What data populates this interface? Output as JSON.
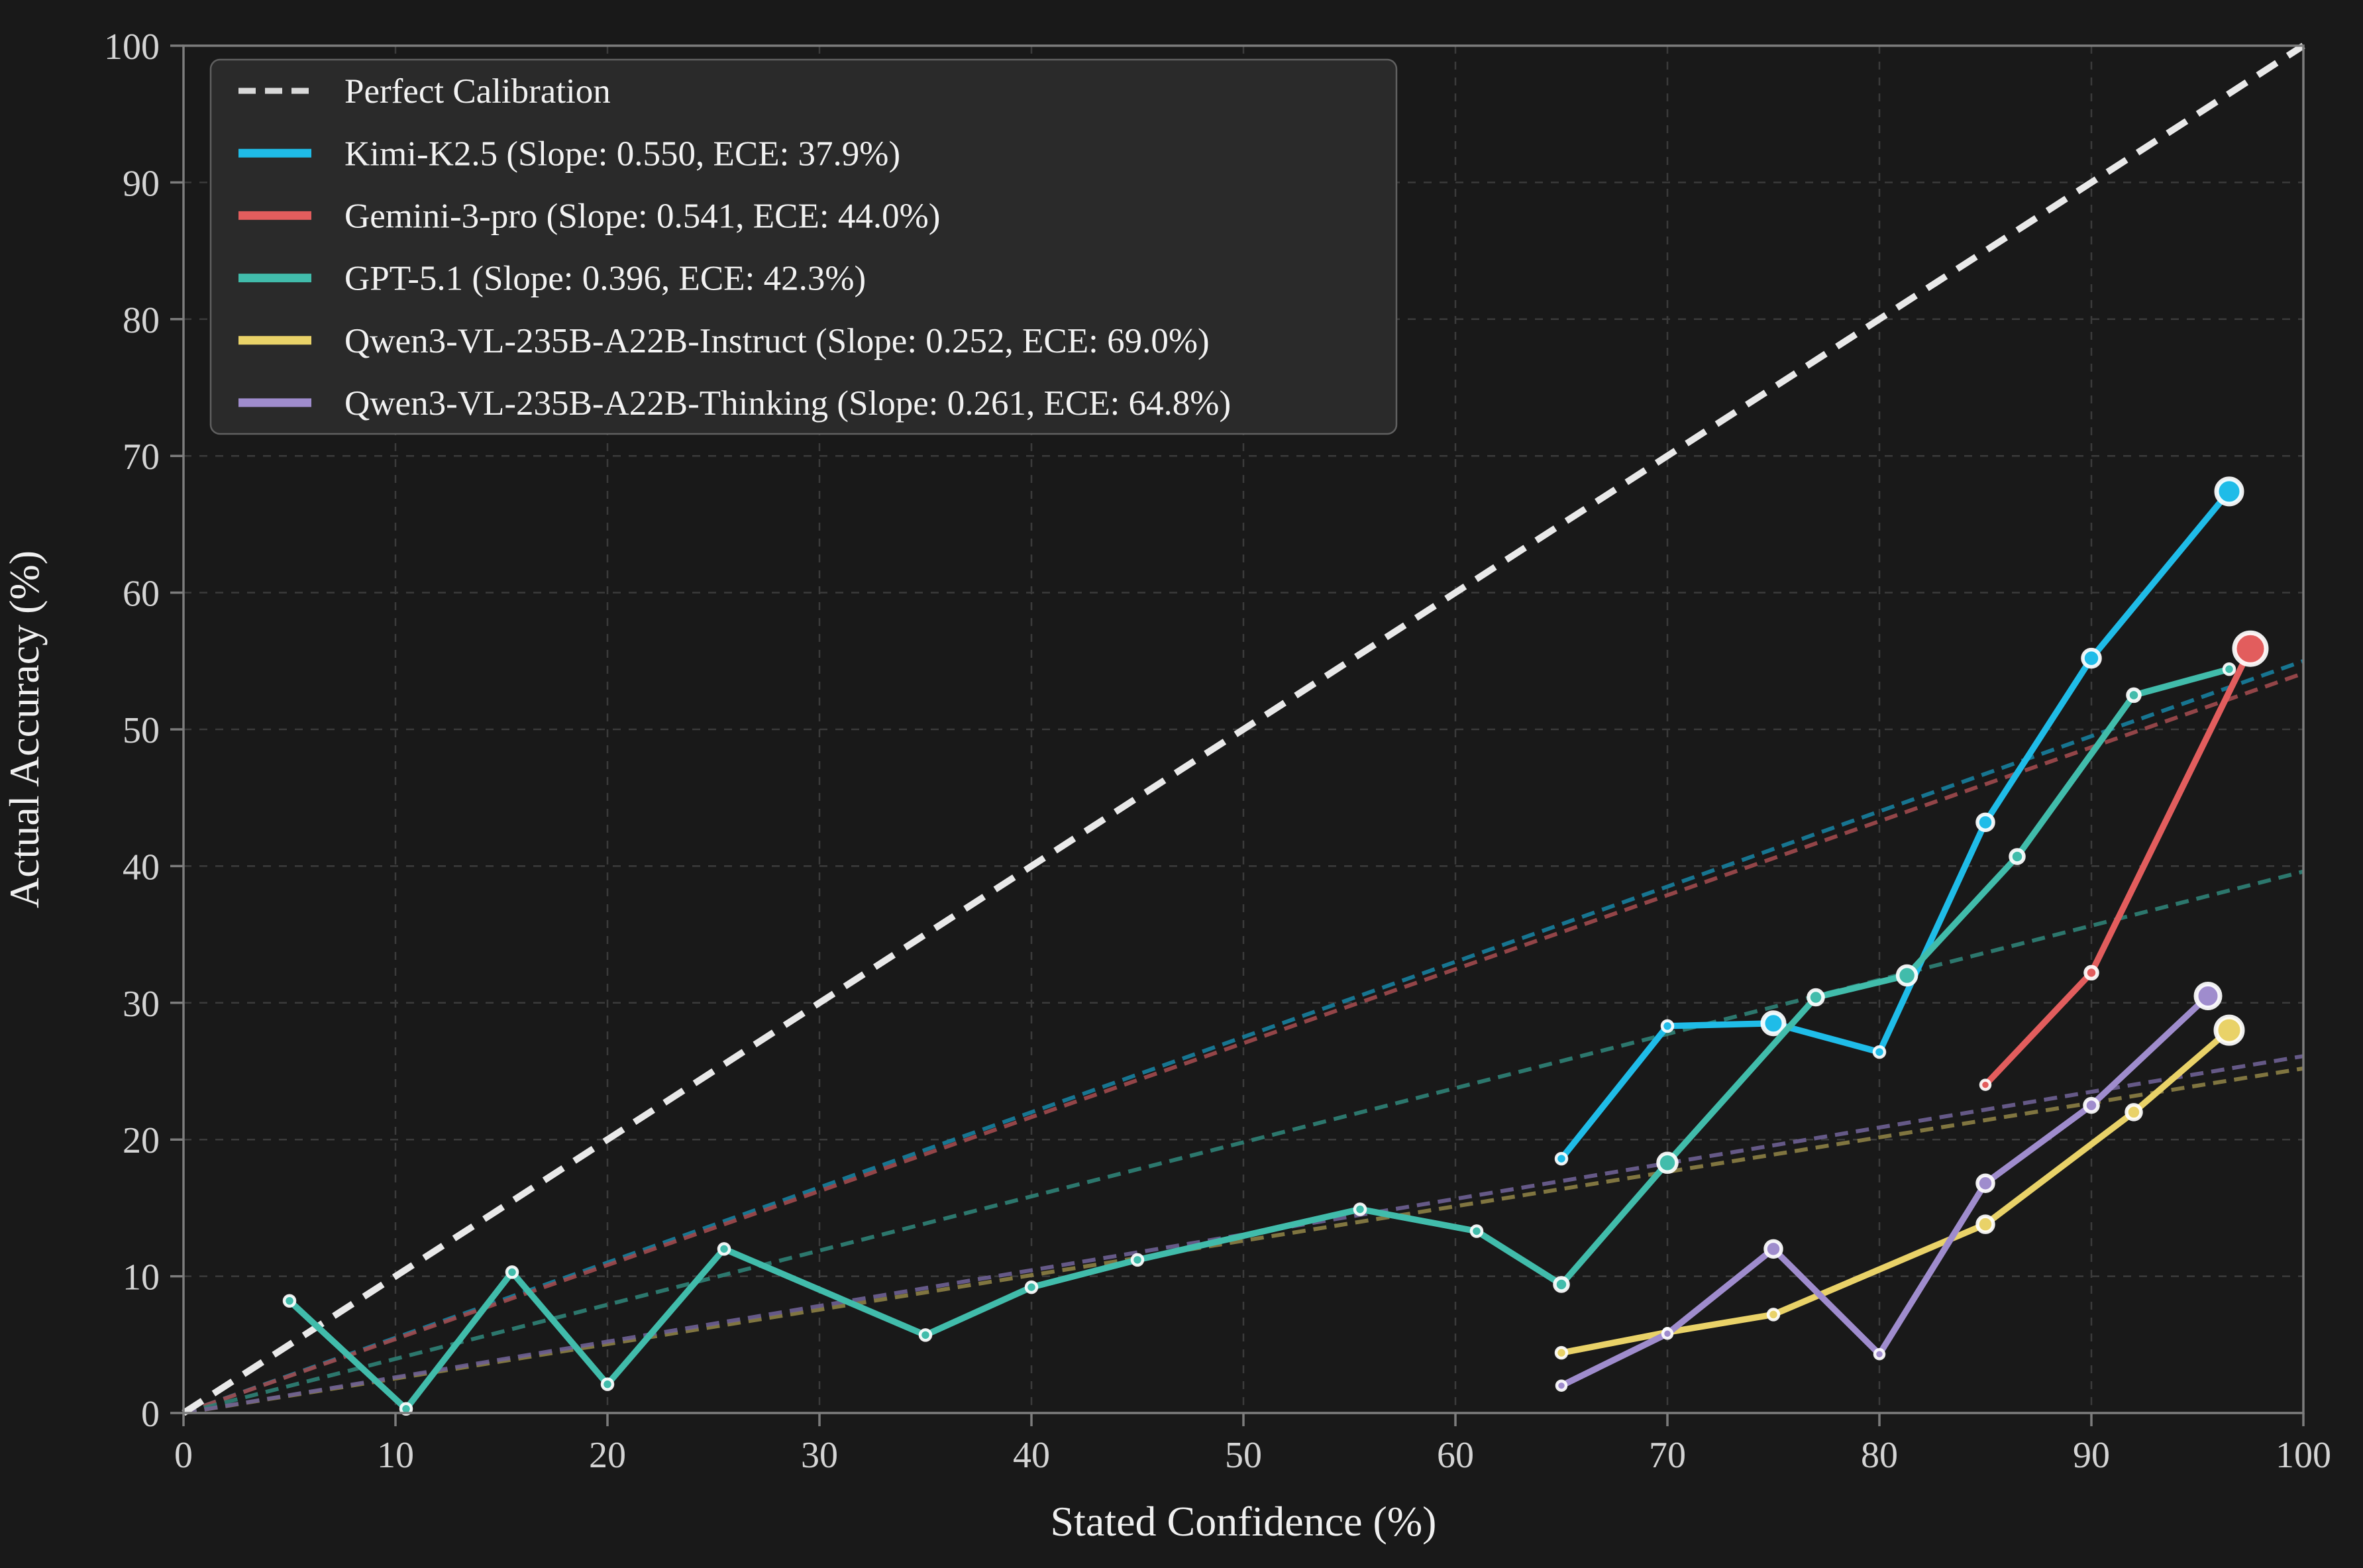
{
  "chart_data": {
    "type": "line",
    "title": "",
    "xlabel": "Stated Confidence (%)",
    "ylabel": "Actual Accuracy (%)",
    "xlim": [
      0,
      100
    ],
    "ylim": [
      0,
      100
    ],
    "xticks": [
      0,
      10,
      20,
      30,
      40,
      50,
      60,
      70,
      80,
      90,
      100
    ],
    "yticks": [
      0,
      10,
      20,
      30,
      40,
      50,
      60,
      70,
      80,
      90,
      100
    ],
    "grid": true,
    "legend_position": "upper left",
    "reference_line": {
      "label": "Perfect Calibration",
      "from": [
        0,
        0
      ],
      "to": [
        100,
        100
      ],
      "color": "#e9e9e9"
    },
    "series": [
      {
        "name": "Kimi-K2.5",
        "label": "Kimi-K2.5 (Slope: 0.550, ECE: 37.9%)",
        "slope": 0.55,
        "ece_pct": 37.9,
        "color": "#1fbce8",
        "fit_color": "#17809f",
        "points": [
          [
            65,
            18.6
          ],
          [
            70,
            28.3
          ],
          [
            75,
            28.5
          ],
          [
            80,
            26.4
          ],
          [
            85,
            43.2
          ],
          [
            90,
            55.2
          ],
          [
            96.5,
            67.4
          ]
        ],
        "marker_radii": [
          8,
          8,
          16,
          8,
          12,
          13,
          19
        ]
      },
      {
        "name": "Gemini-3-pro",
        "label": "Gemini-3-pro (Slope: 0.541, ECE: 44.0%)",
        "slope": 0.541,
        "ece_pct": 44.0,
        "color": "#e25d5d",
        "fit_color": "#a14a4e",
        "points": [
          [
            85,
            24.0
          ],
          [
            90,
            32.2
          ],
          [
            97.5,
            55.9
          ]
        ],
        "marker_radii": [
          7,
          9,
          24
        ]
      },
      {
        "name": "GPT-5.1",
        "label": "GPT-5.1 (Slope: 0.396, ECE: 42.3%)",
        "slope": 0.396,
        "ece_pct": 42.3,
        "color": "#41bcab",
        "fit_color": "#2f8277",
        "points": [
          [
            5,
            8.2
          ],
          [
            10.5,
            0.3
          ],
          [
            15.5,
            10.3
          ],
          [
            20,
            2.1
          ],
          [
            25.5,
            12.0
          ],
          [
            35,
            5.7
          ],
          [
            40,
            9.2
          ],
          [
            45,
            11.2
          ],
          [
            55.5,
            14.9
          ],
          [
            61,
            13.3
          ],
          [
            65,
            9.4
          ],
          [
            70,
            18.3
          ],
          [
            77,
            30.4
          ],
          [
            81.3,
            32.0
          ],
          [
            86.5,
            40.7
          ],
          [
            92,
            52.5
          ],
          [
            96.5,
            54.4
          ]
        ],
        "marker_radii": [
          8,
          8,
          8,
          8,
          8,
          8,
          8,
          8,
          8,
          8,
          10,
          14,
          11,
          14,
          10,
          9,
          8
        ]
      },
      {
        "name": "Qwen3-VL-235B-A22B-Instruct",
        "label": "Qwen3-VL-235B-A22B-Instruct (Slope: 0.252, ECE: 69.0%)",
        "slope": 0.252,
        "ece_pct": 69.0,
        "color": "#e9d268",
        "fit_color": "#8c8045",
        "points": [
          [
            65,
            4.4
          ],
          [
            70,
            5.9
          ],
          [
            75,
            7.2
          ],
          [
            85,
            13.8
          ],
          [
            92,
            22.0
          ],
          [
            96.5,
            28.0
          ]
        ],
        "marker_radii": [
          8,
          6,
          8,
          12,
          11,
          20
        ]
      },
      {
        "name": "Qwen3-VL-235B-A22B-Thinking",
        "label": "Qwen3-VL-235B-A22B-Thinking (Slope: 0.261, ECE: 64.8%)",
        "slope": 0.261,
        "ece_pct": 64.8,
        "color": "#9f8ccd",
        "fit_color": "#6e6094",
        "points": [
          [
            65,
            2.0
          ],
          [
            70,
            5.8
          ],
          [
            75,
            12.0
          ],
          [
            80,
            4.3
          ],
          [
            85,
            16.8
          ],
          [
            90,
            22.5
          ],
          [
            95.5,
            30.5
          ]
        ],
        "marker_radii": [
          7,
          7,
          12,
          7,
          12,
          10,
          18
        ]
      }
    ]
  },
  "style_colors": {
    "figure_background": "#191919",
    "grid": "#3b3b3b",
    "spine": "#7d7d7d",
    "tick_label": "#d4d4d4",
    "axis_label": "#f0f0f0",
    "legend_background": "#2a2a2a",
    "legend_border": "#606060",
    "legend_text": "#f2f2f2"
  }
}
